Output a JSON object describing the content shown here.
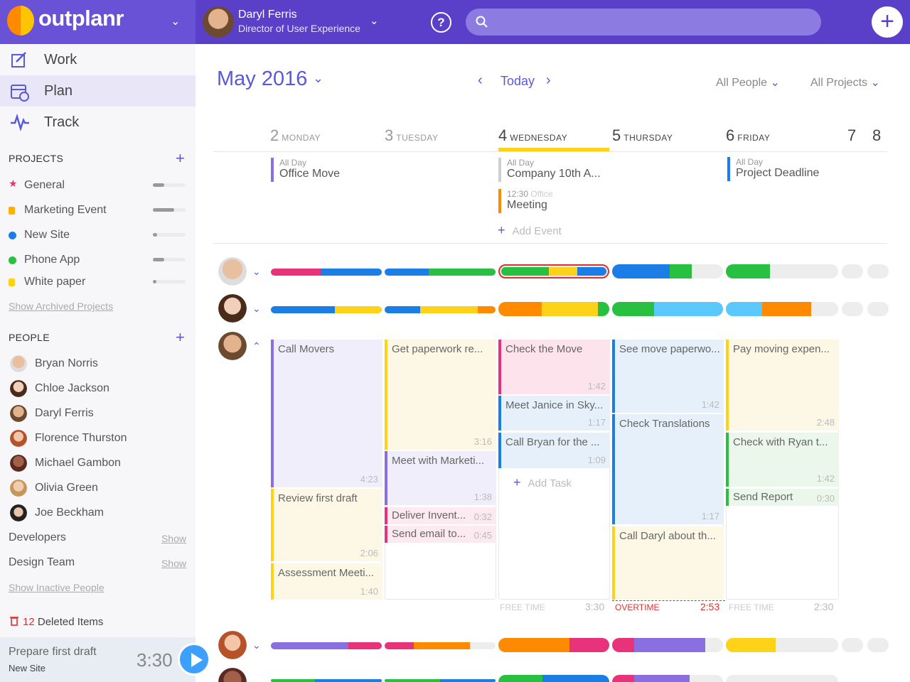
{
  "brand": {
    "name": "outplanr"
  },
  "user": {
    "name": "Daryl Ferris",
    "role": "Director of User Experience"
  },
  "search": {
    "placeholder": ""
  },
  "nav": [
    {
      "label": "Work"
    },
    {
      "label": "Plan"
    },
    {
      "label": "Track"
    }
  ],
  "projects": {
    "heading": "PROJECTS",
    "items": [
      {
        "label": "General",
        "color": "#e8336e",
        "progress": 0.35
      },
      {
        "label": "Marketing Event",
        "color": "#ffb300",
        "progress": 0.65
      },
      {
        "label": "New Site",
        "color": "#1a7ee6",
        "progress": 0.12
      },
      {
        "label": "Phone App",
        "color": "#28c040",
        "progress": 0.35
      },
      {
        "label": "White paper",
        "color": "#ffd21a",
        "progress": 0.1
      }
    ],
    "archived": "Show Archived Projects"
  },
  "people": {
    "heading": "PEOPLE",
    "items": [
      "Bryan Norris",
      "Chloe Jackson",
      "Daryl Ferris",
      "Florence Thurston",
      "Michael Gambon",
      "Olivia Green",
      "Joe Beckham"
    ],
    "teams": [
      {
        "label": "Developers",
        "show": "Show"
      },
      {
        "label": "Design Team",
        "show": "Show"
      }
    ],
    "inactive": "Show Inactive People"
  },
  "deleted": {
    "count": "12",
    "label": "Deleted Items"
  },
  "timer": {
    "task": "Prepare first draft",
    "project": "New Site",
    "time": "3:30"
  },
  "calendar": {
    "month": "May 2016",
    "today": "Today",
    "people_filter": "All People",
    "projects_filter": "All Projects",
    "days": [
      {
        "num": "2",
        "name": "MONDAY"
      },
      {
        "num": "3",
        "name": "TUESDAY"
      },
      {
        "num": "4",
        "name": "WEDNESDAY"
      },
      {
        "num": "5",
        "name": "THURSDAY"
      },
      {
        "num": "6",
        "name": "FRIDAY"
      },
      {
        "num": "7",
        "name": ""
      },
      {
        "num": "8",
        "name": ""
      }
    ],
    "allday": [
      {
        "label": "All Day",
        "title": "Office Move",
        "color": "#8b6fe0"
      },
      {
        "label": "All Day",
        "title": "Company 10th A...",
        "color": "#cfcfcf"
      },
      {
        "label": "12:30",
        "sub": "Office",
        "title": "Meeting",
        "color": "#ff8a00"
      },
      {
        "label": "All Day",
        "title": "Project Deadline",
        "color": "#1a7ee6"
      }
    ],
    "add_event": "Add Event",
    "tasks": {
      "mon": [
        {
          "title": "Call Movers",
          "dur": "4:23"
        },
        {
          "title": "Review first draft",
          "dur": "2:06"
        },
        {
          "title": "Assessment Meeti...",
          "dur": "1:40"
        }
      ],
      "tue": [
        {
          "title": "Get paperwork re...",
          "dur": "3:16"
        },
        {
          "title": "Meet with Marketi...",
          "dur": "1:38"
        },
        {
          "title": "Deliver Invent...",
          "dur": "0:32"
        },
        {
          "title": "Send email to...",
          "dur": "0:45"
        }
      ],
      "wed": [
        {
          "title": "Check the Move",
          "dur": "1:42"
        },
        {
          "title": "Meet Janice in Sky...",
          "dur": "1:17"
        },
        {
          "title": "Call Bryan for the ...",
          "dur": "1:09"
        }
      ],
      "thu": [
        {
          "title": "See move paperwo...",
          "dur": "1:42"
        },
        {
          "title": "Check Translations",
          "dur": "1:17"
        },
        {
          "title": "Call Daryl about th...",
          "dur": ""
        }
      ],
      "fri": [
        {
          "title": "Pay moving expen...",
          "dur": "2:48"
        },
        {
          "title": "Check with Ryan t...",
          "dur": "1:42"
        },
        {
          "title": "Send Report",
          "dur": "0:30"
        }
      ]
    },
    "add_task": "Add Task",
    "footers": [
      {
        "label": "FREE TIME",
        "value": "3:30"
      },
      {
        "label": "OVERTIME",
        "value": "2:53"
      },
      {
        "label": "FREE TIME",
        "value": "2:30"
      }
    ]
  }
}
